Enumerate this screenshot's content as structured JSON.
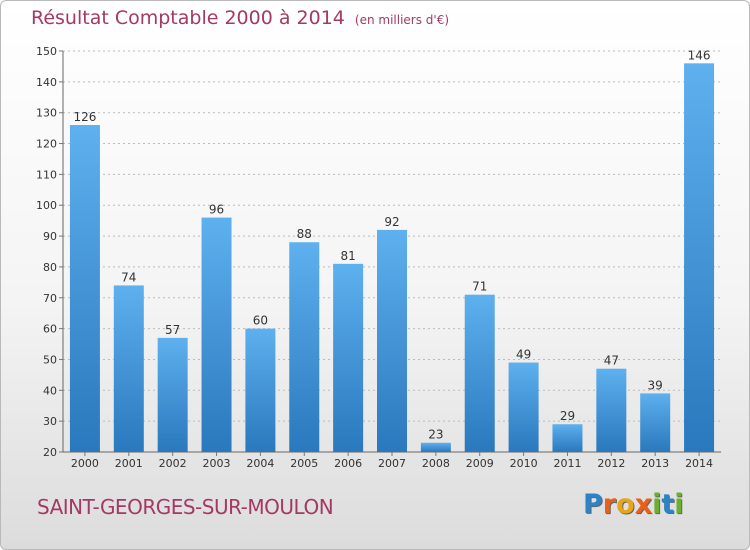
{
  "title": "Résultat Comptable 2000 à 2014",
  "subtitle": "(en milliers d'€)",
  "commune": "SAINT-GEORGES-SUR-MOULON",
  "logo": {
    "letters": [
      "P",
      "r",
      "o",
      "x",
      "i",
      "t",
      "i"
    ],
    "colors": [
      "#2c83c6",
      "#e8611a",
      "#e8a51a",
      "#e8611a",
      "#6cae2e",
      "#2c83c6",
      "#6cae2e"
    ]
  },
  "colors": {
    "title": "#a33a63",
    "bar_light": "#5eb0ee",
    "bar_dark": "#2a78bd",
    "grid": "#bbbbbb"
  },
  "chart_data": {
    "type": "bar",
    "title": "Résultat Comptable 2000 à 2014",
    "subtitle": "(en milliers d'€)",
    "xlabel": "",
    "ylabel": "",
    "categories": [
      "2000",
      "2001",
      "2002",
      "2003",
      "2004",
      "2005",
      "2006",
      "2007",
      "2008",
      "2009",
      "2010",
      "2011",
      "2012",
      "2013",
      "2014"
    ],
    "values": [
      126,
      74,
      57,
      96,
      60,
      88,
      81,
      92,
      23,
      71,
      49,
      29,
      47,
      39,
      146
    ],
    "ylim": [
      20,
      150
    ],
    "yticks": [
      20,
      30,
      40,
      50,
      60,
      70,
      80,
      90,
      100,
      110,
      120,
      130,
      140,
      150
    ],
    "grid": true
  }
}
